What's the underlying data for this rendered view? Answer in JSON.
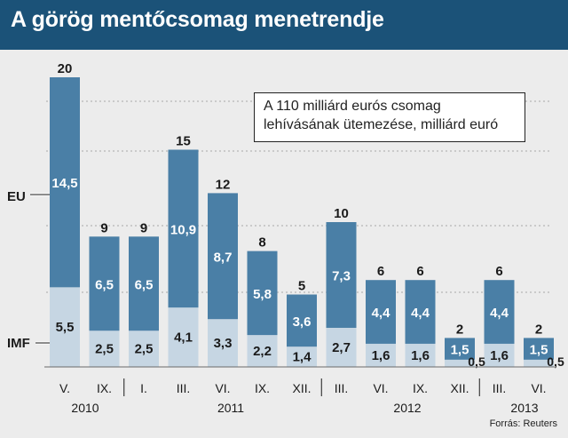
{
  "header": {
    "title": "A görög mentőcsomag menetrendje"
  },
  "legend": {
    "line1": "A 110 milliárd eurós csomag",
    "line2": "lehívásának ütemezése, milliárd euró"
  },
  "source": "Forrás: Reuters",
  "series_labels": {
    "eu": "EU",
    "imf": "IMF"
  },
  "colors": {
    "eu": "#4a7fa6",
    "imf": "#c6d6e3",
    "title_bg": "#1b5278",
    "background": "#ececec"
  },
  "chart_data": {
    "type": "bar",
    "stacked": true,
    "categories": [
      "V.",
      "IX.",
      "I.",
      "III.",
      "VI.",
      "IX.",
      "XII.",
      "III.",
      "VI.",
      "IX.",
      "XII.",
      "III.",
      "VI."
    ],
    "years": [
      "2010",
      "2011",
      "2012",
      "2013"
    ],
    "series": [
      {
        "name": "IMF",
        "values": [
          5.5,
          2.5,
          2.5,
          4.1,
          3.3,
          2.2,
          1.4,
          2.7,
          1.6,
          1.6,
          0.5,
          1.6,
          0.5
        ],
        "labels": [
          "5,5",
          "2,5",
          "2,5",
          "4,1",
          "3,3",
          "2,2",
          "1,4",
          "2,7",
          "1,6",
          "1,6",
          "0,5",
          "1,6",
          "0,5"
        ]
      },
      {
        "name": "EU",
        "values": [
          14.5,
          6.5,
          6.5,
          10.9,
          8.7,
          5.8,
          3.6,
          7.3,
          4.4,
          4.4,
          1.5,
          4.4,
          1.5
        ],
        "labels": [
          "14,5",
          "6,5",
          "6,5",
          "10,9",
          "8,7",
          "5,8",
          "3,6",
          "7,3",
          "4,4",
          "4,4",
          "1,5",
          "4,4",
          "1,5"
        ]
      }
    ],
    "totals": [
      20,
      9,
      9,
      15,
      12,
      8,
      5,
      10,
      6,
      6,
      2,
      6,
      2
    ],
    "title": "A görög mentőcsomag menetrendje",
    "ylabel": "milliárd euró",
    "ylim": [
      0,
      20
    ],
    "grid": true
  }
}
